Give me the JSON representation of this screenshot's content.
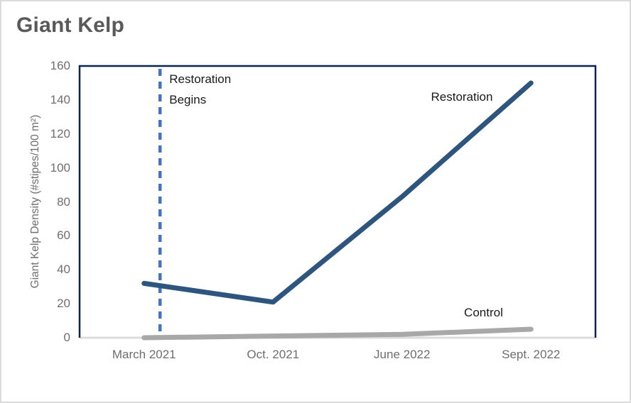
{
  "page": {
    "title": "Giant Kelp"
  },
  "chart_data": {
    "type": "line",
    "title": "Giant Kelp",
    "categories": [
      "March 2021",
      "Oct. 2021",
      "June 2022",
      "Sept. 2022"
    ],
    "series": [
      {
        "name": "Restoration",
        "values": [
          32,
          21,
          83,
          150
        ],
        "color": "#2D557E",
        "label_pos": {
          "x_frac": 0.741,
          "y_value": 141
        }
      },
      {
        "name": "Control",
        "values": [
          0,
          1,
          2,
          5
        ],
        "color": "#A8A8A8",
        "label_pos": {
          "x_frac": 0.783,
          "y_value": 14
        }
      }
    ],
    "xlabel": "",
    "ylabel": "Giant Kelp Density (#stipes/100 m²)",
    "ylim": [
      0,
      160
    ],
    "yticks": [
      0,
      20,
      40,
      60,
      80,
      100,
      120,
      140,
      160
    ],
    "grid": false,
    "legend": "inline-labels",
    "annotations": {
      "vline": {
        "x_frac": 0.156,
        "style": "dashed",
        "color": "#4472C4",
        "label": "Restoration Begins",
        "label_lines": [
          "Restoration",
          "Begins"
        ]
      }
    },
    "colors": {
      "frame": "#0A2353",
      "baseline": "#DCDCDC",
      "title_text": "#595959",
      "tick_text": "#6E6E6E",
      "annotation_text": "#1A1A1A"
    }
  }
}
